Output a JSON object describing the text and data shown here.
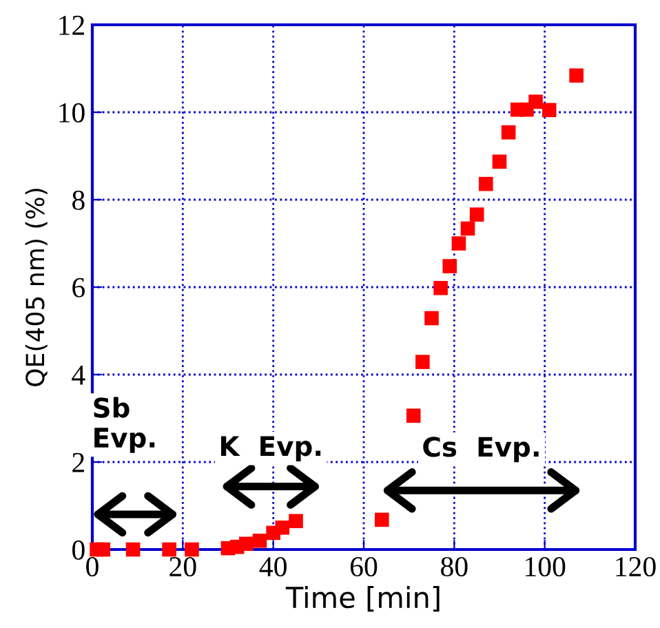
{
  "chart_data": {
    "type": "scatter",
    "xlabel": "Time [min]",
    "ylabel": "QE(405 nm) (%)",
    "series": [
      {
        "color": "#ff0000",
        "x": [
          1,
          2.4,
          9,
          17,
          22,
          30,
          32,
          34,
          37,
          40,
          42,
          44,
          45,
          64,
          71,
          73,
          75,
          77,
          79,
          81,
          83,
          85,
          87,
          90,
          92,
          94,
          96,
          98,
          101,
          107
        ],
        "values": [
          0,
          0,
          0,
          0,
          0,
          0.03,
          0.06,
          0.13,
          0.2,
          0.38,
          0.5,
          null,
          0.65,
          0.68,
          3.06,
          4.29,
          5.29,
          5.98,
          6.48,
          7.0,
          7.34,
          7.66,
          8.36,
          8.87,
          9.54,
          10.06,
          10.06,
          10.24,
          10.05,
          10.84
        ]
      }
    ],
    "marker": "square",
    "grid": true,
    "legend": false,
    "xlim": [
      0,
      120
    ],
    "xticks": [
      0,
      20,
      40,
      60,
      80,
      100,
      120
    ],
    "ylim": [
      0,
      12
    ],
    "yticks": [
      0,
      2,
      4,
      6,
      8,
      10,
      12
    ],
    "annotations": [
      "Sb\nEvp.",
      "K  Evp.",
      "Cs  Evp."
    ]
  }
}
